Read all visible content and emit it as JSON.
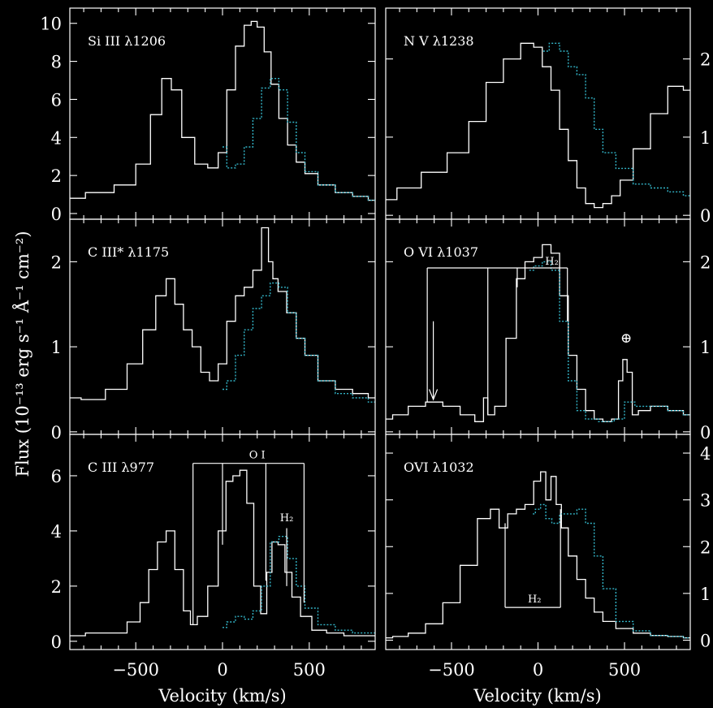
{
  "figure": {
    "ylabel": "Flux (10⁻¹³ erg s⁻¹ Å⁻¹ cm⁻²)",
    "xlabel": "Velocity (km/s)",
    "colors": {
      "background": "#000000",
      "solid": "#ffffff",
      "dotted": "#33b5c8"
    }
  },
  "chart_data": [
    {
      "type": "line",
      "panel": "top-left",
      "title": "Si III λ1206",
      "xlim": [
        -880,
        880
      ],
      "ylim": [
        -0.3,
        10.8
      ],
      "yticks": [
        0,
        2,
        4,
        6,
        8,
        10
      ],
      "xticks": [
        -500,
        0,
        500
      ],
      "series": [
        {
          "style": "solid",
          "x": [
            -880,
            -700,
            -550,
            -450,
            -380,
            -320,
            -270,
            -200,
            -120,
            -50,
            0,
            50,
            100,
            150,
            180,
            220,
            260,
            300,
            350,
            400,
            450,
            500,
            600,
            700,
            800,
            880
          ],
          "y": [
            0.8,
            1.1,
            1.5,
            2.6,
            5.2,
            7.1,
            6.5,
            4.0,
            2.6,
            2.4,
            3.2,
            6.5,
            8.8,
            9.9,
            10.1,
            9.8,
            8.5,
            6.8,
            5.0,
            3.6,
            2.7,
            2.1,
            1.5,
            1.1,
            0.9,
            0.7
          ]
        },
        {
          "style": "dotted",
          "x": [
            0,
            50,
            100,
            150,
            200,
            250,
            300,
            350,
            400,
            450,
            500,
            600,
            700,
            800,
            880
          ],
          "y": [
            3.5,
            2.4,
            2.6,
            3.5,
            5.0,
            6.6,
            7.1,
            6.5,
            4.8,
            3.2,
            2.2,
            1.5,
            1.1,
            0.9,
            0.7
          ]
        }
      ]
    },
    {
      "type": "line",
      "panel": "top-right",
      "title": "N V λ1238",
      "xlim": [
        -880,
        880
      ],
      "ylim": [
        -0.05,
        2.65
      ],
      "yticks": [
        0,
        1,
        2
      ],
      "xticks": [
        -500,
        0,
        500
      ],
      "series": [
        {
          "style": "solid",
          "x": [
            -880,
            -750,
            -600,
            -450,
            -350,
            -250,
            -150,
            -50,
            0,
            50,
            100,
            150,
            200,
            250,
            300,
            350,
            400,
            450,
            500,
            600,
            700,
            800,
            880
          ],
          "y": [
            0.2,
            0.35,
            0.55,
            0.8,
            1.2,
            1.7,
            2.0,
            2.2,
            2.15,
            1.9,
            1.6,
            1.1,
            0.7,
            0.35,
            0.15,
            0.1,
            0.15,
            0.25,
            0.45,
            0.85,
            1.3,
            1.65,
            1.6
          ]
        },
        {
          "style": "dotted",
          "x": [
            30,
            100,
            150,
            200,
            250,
            300,
            350,
            400,
            500,
            600,
            700,
            800,
            880
          ],
          "y": [
            2.1,
            2.2,
            2.1,
            1.9,
            1.8,
            1.5,
            1.1,
            0.8,
            0.6,
            0.4,
            0.35,
            0.3,
            0.25
          ]
        }
      ]
    },
    {
      "type": "line",
      "panel": "middle-left",
      "title": "C III* λ1175",
      "xlim": [
        -880,
        880
      ],
      "ylim": [
        -0.03,
        2.5
      ],
      "yticks": [
        0,
        1,
        2
      ],
      "xticks": [
        -500,
        0,
        500
      ],
      "series": [
        {
          "style": "solid",
          "x": [
            -880,
            -750,
            -600,
            -500,
            -420,
            -350,
            -300,
            -250,
            -200,
            -150,
            -100,
            -50,
            0,
            50,
            100,
            150,
            200,
            250,
            280,
            300,
            340,
            400,
            450,
            500,
            600,
            700,
            800,
            880
          ],
          "y": [
            0.4,
            0.38,
            0.5,
            0.8,
            1.2,
            1.6,
            1.8,
            1.5,
            1.2,
            1.0,
            0.7,
            0.6,
            0.8,
            1.3,
            1.6,
            1.7,
            1.9,
            2.4,
            2.0,
            1.8,
            1.65,
            1.4,
            1.1,
            0.9,
            0.6,
            0.5,
            0.45,
            0.4
          ]
        },
        {
          "style": "dotted",
          "x": [
            0,
            50,
            100,
            150,
            200,
            250,
            300,
            350,
            400,
            450,
            500,
            600,
            700,
            800,
            880
          ],
          "y": [
            0.5,
            0.6,
            0.9,
            1.2,
            1.45,
            1.6,
            1.75,
            1.7,
            1.4,
            1.1,
            0.9,
            0.6,
            0.45,
            0.4,
            0.35
          ]
        }
      ]
    },
    {
      "type": "line",
      "panel": "middle-right",
      "title": "O VI λ1037",
      "xlim": [
        -880,
        880
      ],
      "ylim": [
        -0.03,
        2.5
      ],
      "yticks": [
        0,
        1,
        2
      ],
      "xticks": [
        -500,
        0,
        500
      ],
      "series": [
        {
          "style": "solid",
          "x": [
            -880,
            -800,
            -700,
            -600,
            -500,
            -400,
            -330,
            -300,
            -280,
            -220,
            -150,
            -100,
            -50,
            0,
            50,
            100,
            150,
            200,
            250,
            300,
            350,
            400,
            450,
            480,
            500,
            530,
            560,
            600,
            700,
            800,
            880
          ],
          "y": [
            0.15,
            0.2,
            0.3,
            0.35,
            0.3,
            0.2,
            0.12,
            0.4,
            0.2,
            0.3,
            1.1,
            1.8,
            2.0,
            2.05,
            2.2,
            2.1,
            1.6,
            0.9,
            0.5,
            0.25,
            0.15,
            0.12,
            0.15,
            0.6,
            0.85,
            0.7,
            0.2,
            0.25,
            0.3,
            0.25,
            0.2
          ]
        },
        {
          "style": "dotted",
          "x": [
            -50,
            0,
            50,
            100,
            150,
            200,
            250,
            300,
            400,
            480,
            520,
            600,
            700,
            800,
            880
          ],
          "y": [
            1.9,
            1.95,
            2.0,
            1.9,
            1.3,
            0.6,
            0.25,
            0.15,
            0.12,
            0.15,
            0.35,
            0.3,
            0.3,
            0.25,
            0.2
          ]
        }
      ]
    },
    {
      "type": "line",
      "panel": "bottom-left",
      "title": "C III  λ977",
      "xlim": [
        -880,
        880
      ],
      "ylim": [
        -0.3,
        7.5
      ],
      "yticks": [
        0,
        2,
        4,
        6
      ],
      "xticks": [
        -500,
        0,
        500
      ],
      "series": [
        {
          "style": "solid",
          "x": [
            -880,
            -700,
            -600,
            -500,
            -450,
            -400,
            -350,
            -300,
            -250,
            -200,
            -170,
            -120,
            -50,
            0,
            40,
            80,
            120,
            160,
            200,
            240,
            270,
            300,
            340,
            380,
            420,
            480,
            550,
            650,
            750,
            880
          ],
          "y": [
            0.2,
            0.3,
            0.3,
            0.7,
            1.4,
            2.6,
            3.6,
            4.0,
            2.6,
            1.1,
            0.6,
            0.9,
            2.0,
            4.0,
            5.8,
            6.0,
            6.2,
            5.0,
            2.0,
            1.0,
            2.5,
            3.6,
            3.5,
            2.5,
            1.6,
            0.9,
            0.4,
            0.3,
            0.2,
            0.2
          ]
        },
        {
          "style": "dotted",
          "x": [
            0,
            50,
            100,
            150,
            200,
            250,
            300,
            350,
            400,
            450,
            500,
            600,
            700,
            800,
            880
          ],
          "y": [
            0.5,
            0.7,
            0.9,
            0.8,
            1.1,
            2.0,
            3.6,
            3.8,
            3.0,
            2.0,
            1.2,
            0.6,
            0.4,
            0.3,
            0.3
          ]
        }
      ]
    },
    {
      "type": "line",
      "panel": "bottom-right",
      "title": "OVI λ1032",
      "xlim": [
        -880,
        880
      ],
      "ylim": [
        -0.2,
        4.4
      ],
      "yticks": [
        0,
        1,
        2,
        3,
        4
      ],
      "xticks": [
        -500,
        0,
        500
      ],
      "series": [
        {
          "style": "solid",
          "x": [
            -880,
            -800,
            -700,
            -600,
            -500,
            -400,
            -300,
            -250,
            -200,
            -150,
            -100,
            -50,
            0,
            30,
            60,
            90,
            120,
            150,
            200,
            250,
            300,
            350,
            400,
            500,
            600,
            700,
            800,
            880
          ],
          "y": [
            0.05,
            0.08,
            0.15,
            0.35,
            0.8,
            1.6,
            2.6,
            2.8,
            2.4,
            2.7,
            2.8,
            2.9,
            3.4,
            3.6,
            3.0,
            3.5,
            2.9,
            2.4,
            1.8,
            1.3,
            0.9,
            0.6,
            0.4,
            0.25,
            0.15,
            0.1,
            0.08,
            0.05
          ]
        },
        {
          "style": "dotted",
          "x": [
            -30,
            0,
            30,
            60,
            100,
            150,
            200,
            250,
            300,
            350,
            400,
            500,
            600,
            700,
            800,
            880
          ],
          "y": [
            2.7,
            2.8,
            2.9,
            2.6,
            2.5,
            2.7,
            2.7,
            2.8,
            2.5,
            1.8,
            1.1,
            0.4,
            0.2,
            0.1,
            0.08,
            0.05
          ]
        }
      ]
    }
  ],
  "annotations": {
    "p4_h2": "H₂",
    "p4_earth": "⊕",
    "p5_oi": "O I",
    "p5_h2": "H₂",
    "p6_h2": "H₂"
  }
}
